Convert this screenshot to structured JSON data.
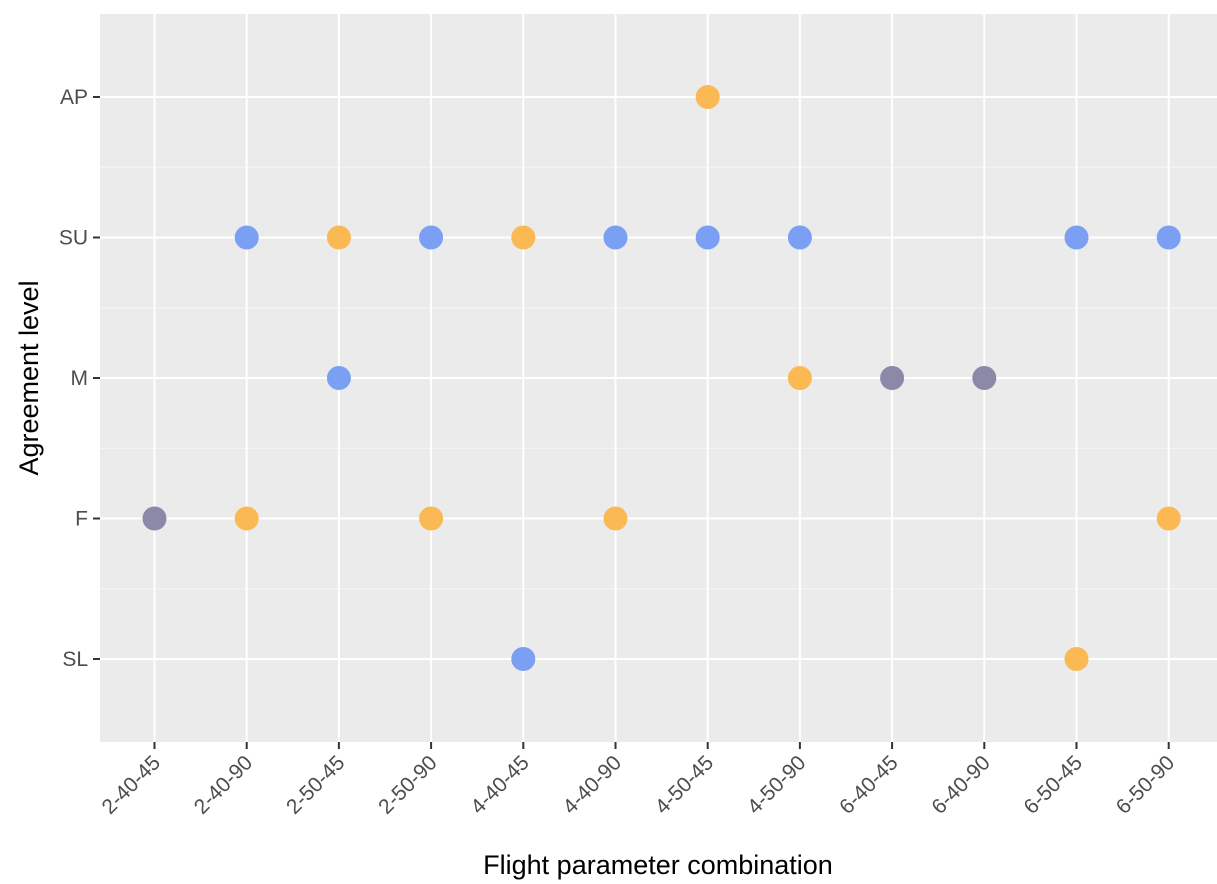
{
  "chart_data": {
    "type": "scatter",
    "xlabel": "Flight parameter combination",
    "ylabel": "Agreement level",
    "x_categories": [
      "2-40-45",
      "2-40-90",
      "2-50-45",
      "2-50-90",
      "4-40-45",
      "4-40-90",
      "4-50-45",
      "4-50-90",
      "6-40-45",
      "6-40-90",
      "6-50-45",
      "6-50-90"
    ],
    "y_categories": [
      "SL",
      "F",
      "M",
      "SU",
      "AP"
    ],
    "grid": true,
    "legend": "none",
    "colors": {
      "blue": "#7b9ff2",
      "orange": "#fbb954",
      "overlap": "#8b88a8",
      "panel": "#ebebeb",
      "grid": "#ffffff"
    },
    "points": [
      {
        "x": "2-40-45",
        "y": "F",
        "color": "overlap"
      },
      {
        "x": "2-40-90",
        "y": "SU",
        "color": "blue"
      },
      {
        "x": "2-40-90",
        "y": "F",
        "color": "orange"
      },
      {
        "x": "2-50-45",
        "y": "SU",
        "color": "orange"
      },
      {
        "x": "2-50-45",
        "y": "M",
        "color": "blue"
      },
      {
        "x": "2-50-90",
        "y": "SU",
        "color": "blue"
      },
      {
        "x": "2-50-90",
        "y": "F",
        "color": "orange"
      },
      {
        "x": "4-40-45",
        "y": "SU",
        "color": "orange"
      },
      {
        "x": "4-40-45",
        "y": "SL",
        "color": "blue"
      },
      {
        "x": "4-40-90",
        "y": "SU",
        "color": "blue"
      },
      {
        "x": "4-40-90",
        "y": "F",
        "color": "orange"
      },
      {
        "x": "4-50-45",
        "y": "AP",
        "color": "orange"
      },
      {
        "x": "4-50-45",
        "y": "SU",
        "color": "blue"
      },
      {
        "x": "4-50-90",
        "y": "SU",
        "color": "blue"
      },
      {
        "x": "4-50-90",
        "y": "M",
        "color": "orange"
      },
      {
        "x": "6-40-45",
        "y": "M",
        "color": "overlap"
      },
      {
        "x": "6-40-90",
        "y": "M",
        "color": "overlap"
      },
      {
        "x": "6-50-45",
        "y": "SU",
        "color": "blue"
      },
      {
        "x": "6-50-45",
        "y": "SL",
        "color": "orange"
      },
      {
        "x": "6-50-90",
        "y": "SU",
        "color": "blue"
      },
      {
        "x": "6-50-90",
        "y": "F",
        "color": "orange"
      }
    ]
  }
}
